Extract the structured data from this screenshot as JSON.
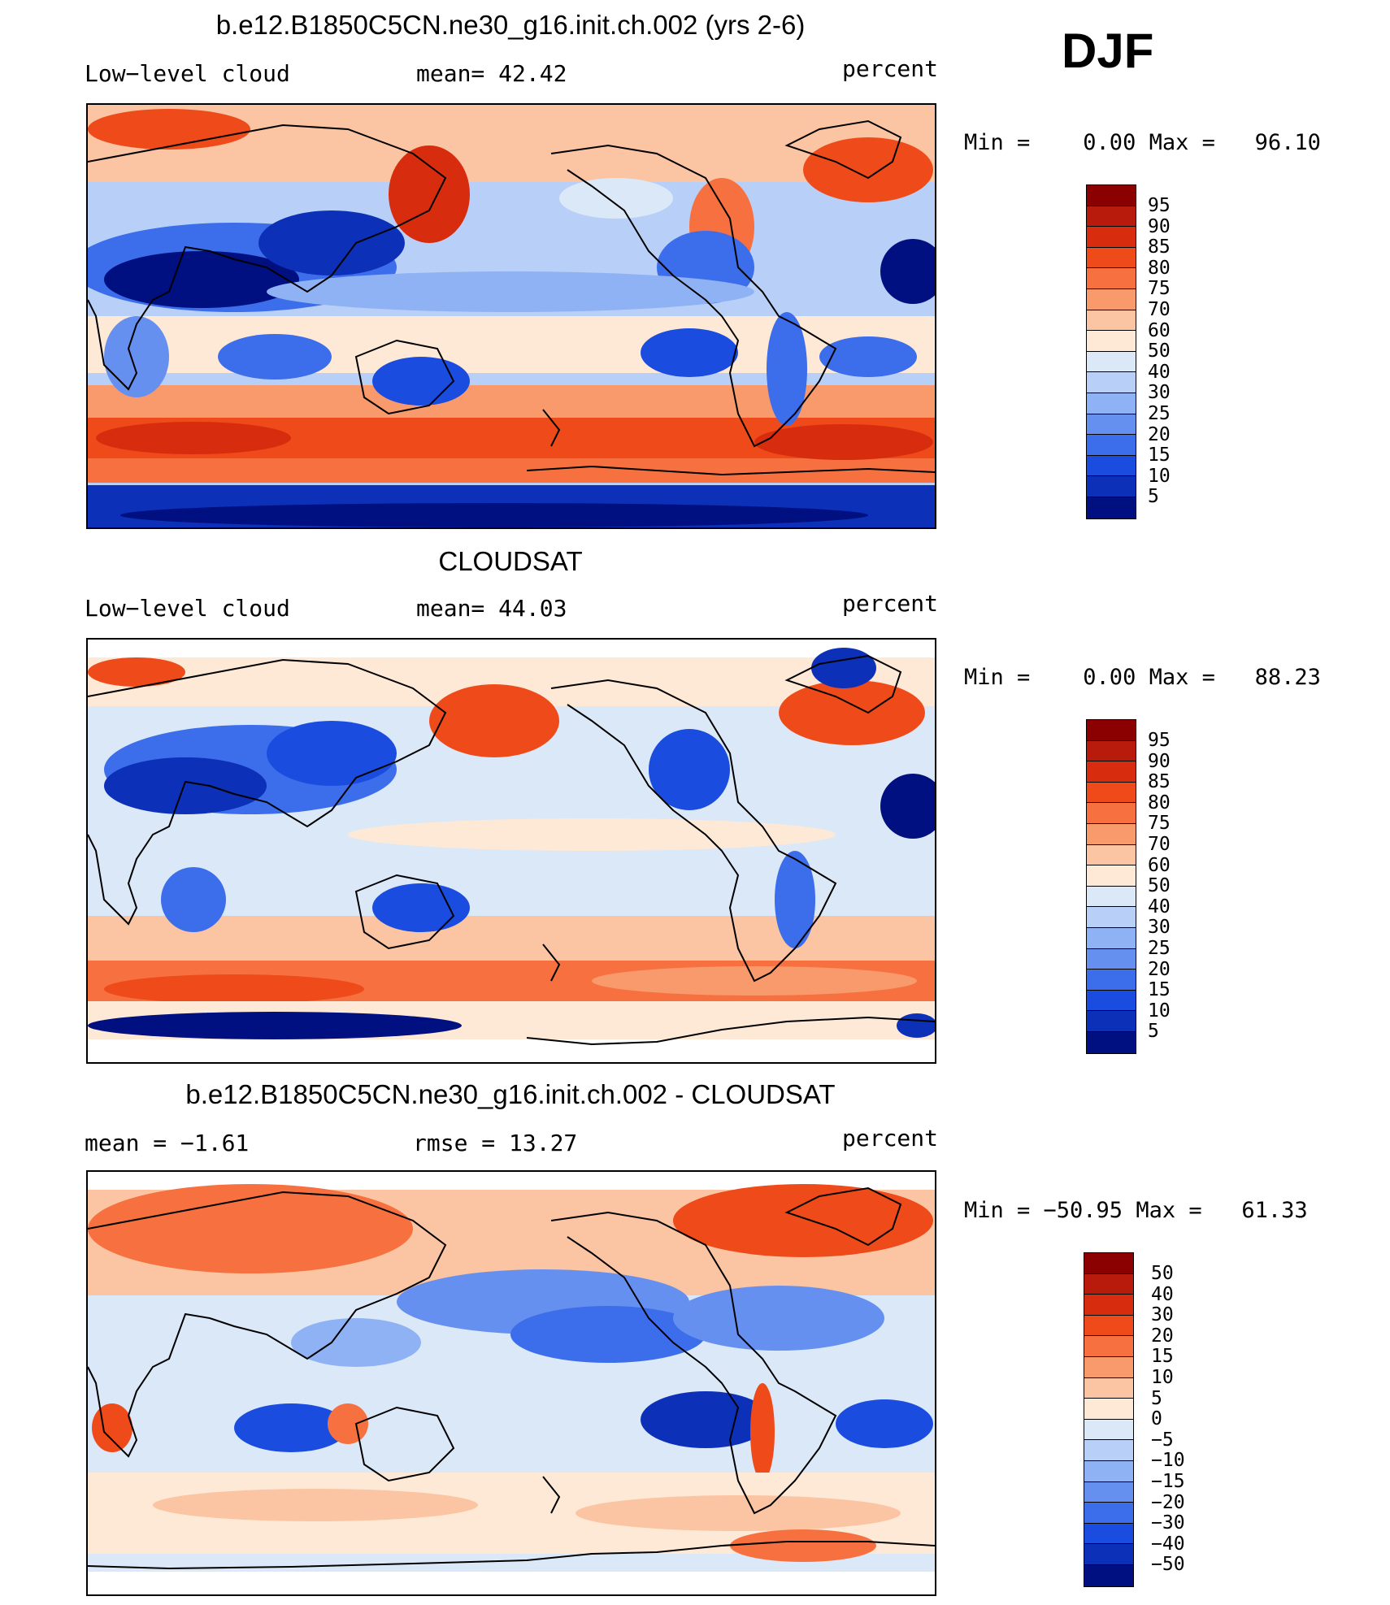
{
  "season": "DJF",
  "panels": [
    {
      "title": "b.e12.B1850C5CN.ne30_g16.init.ch.002 (yrs 2-6)",
      "left_label": "Low−level cloud",
      "mid_label": "mean=   42.42",
      "right_label": "percent",
      "minmax": "Min =    0.00 Max =   96.10",
      "colorbar": {
        "colors": [
          "#8b0000",
          "#b81a0c",
          "#d72d0e",
          "#ee4a1a",
          "#f6713f",
          "#f99a6c",
          "#fbc4a2",
          "#fee9d6",
          "#dbe8f8",
          "#b8d0f7",
          "#8fb2f4",
          "#6690f0",
          "#3c6deb",
          "#1a4ddf",
          "#0c30b8",
          "#001080"
        ],
        "labels": [
          "95",
          "90",
          "85",
          "80",
          "75",
          "70",
          "60",
          "50",
          "40",
          "30",
          "25",
          "20",
          "15",
          "10",
          "5"
        ]
      }
    },
    {
      "title": "CLOUDSAT",
      "left_label": "Low−level cloud",
      "mid_label": "mean=   44.03",
      "right_label": "percent",
      "minmax": "Min =    0.00 Max =   88.23",
      "colorbar": {
        "colors": [
          "#8b0000",
          "#b81a0c",
          "#d72d0e",
          "#ee4a1a",
          "#f6713f",
          "#f99a6c",
          "#fbc4a2",
          "#fee9d6",
          "#dbe8f8",
          "#b8d0f7",
          "#8fb2f4",
          "#6690f0",
          "#3c6deb",
          "#1a4ddf",
          "#0c30b8",
          "#001080"
        ],
        "labels": [
          "95",
          "90",
          "85",
          "80",
          "75",
          "70",
          "60",
          "50",
          "40",
          "30",
          "25",
          "20",
          "15",
          "10",
          "5"
        ]
      }
    },
    {
      "title": "b.e12.B1850C5CN.ne30_g16.init.ch.002 - CLOUDSAT",
      "left_label": "mean =   −1.61",
      "mid_label": "rmse =   13.27",
      "right_label": "percent",
      "minmax": "Min = −50.95 Max =   61.33",
      "colorbar": {
        "colors": [
          "#8b0000",
          "#b81a0c",
          "#d72d0e",
          "#ee4a1a",
          "#f6713f",
          "#f99a6c",
          "#fbc4a2",
          "#fee9d6",
          "#dbe8f8",
          "#b8d0f7",
          "#8fb2f4",
          "#6690f0",
          "#3c6deb",
          "#1a4ddf",
          "#0c30b8",
          "#001080"
        ],
        "labels": [
          "50",
          "40",
          "30",
          "20",
          "15",
          "10",
          "5",
          "0",
          "−5",
          "−10",
          "−15",
          "−20",
          "−30",
          "−40",
          "−50"
        ]
      }
    }
  ]
}
